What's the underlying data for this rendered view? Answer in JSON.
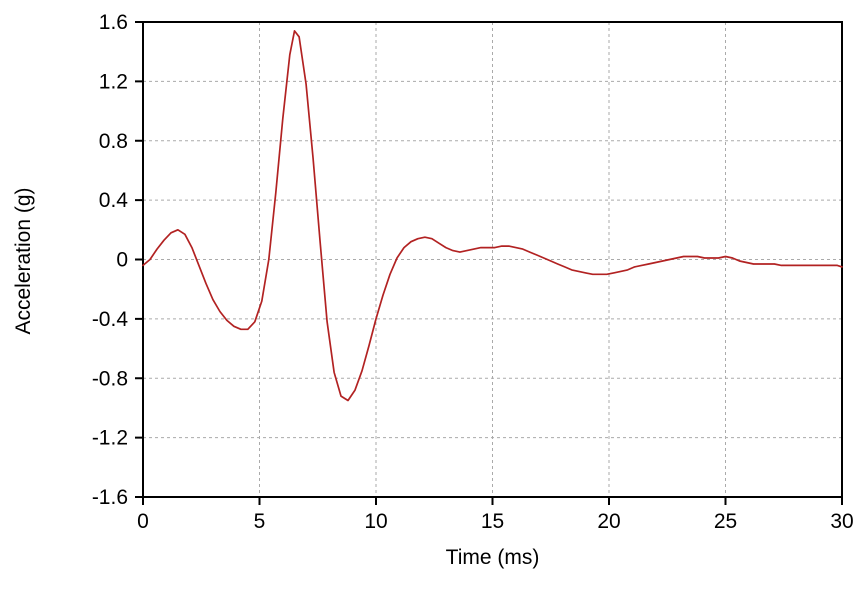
{
  "chart_data": {
    "type": "line",
    "title": "",
    "xlabel": "Time (ms)",
    "ylabel": "Acceleration (g)",
    "xlim": [
      0,
      30
    ],
    "ylim": [
      -1.6,
      1.6
    ],
    "xticks": [
      0,
      5,
      10,
      15,
      20,
      25,
      30
    ],
    "xtick_labels": [
      "0",
      "5",
      "10",
      "15",
      "20",
      "25",
      "30"
    ],
    "yticks": [
      -1.6,
      -1.2,
      -0.8,
      -0.4,
      0,
      0.4,
      0.8,
      1.2,
      1.6
    ],
    "ytick_labels": [
      "-1.6",
      "-1.2",
      "-0.8",
      "-0.4",
      "0",
      "0.4",
      "0.8",
      "1.2",
      "1.6"
    ],
    "grid": true,
    "legend": false,
    "line_color": "#b22222",
    "grid_color": "#aaaaaa",
    "border_color": "#000000",
    "series": [
      {
        "name": "acceleration",
        "x": [
          0.0,
          0.3,
          0.6,
          0.9,
          1.2,
          1.5,
          1.8,
          2.1,
          2.4,
          2.7,
          3.0,
          3.3,
          3.6,
          3.9,
          4.2,
          4.5,
          4.8,
          5.1,
          5.4,
          5.7,
          6.0,
          6.3,
          6.5,
          6.7,
          7.0,
          7.3,
          7.6,
          7.9,
          8.2,
          8.5,
          8.8,
          9.1,
          9.4,
          9.7,
          10.0,
          10.3,
          10.6,
          10.9,
          11.2,
          11.5,
          11.8,
          12.1,
          12.4,
          12.7,
          13.0,
          13.3,
          13.6,
          13.9,
          14.2,
          14.5,
          14.8,
          15.1,
          15.4,
          15.7,
          16.0,
          16.3,
          16.6,
          16.9,
          17.2,
          17.5,
          17.8,
          18.1,
          18.4,
          18.7,
          19.0,
          19.3,
          19.6,
          19.9,
          20.2,
          20.5,
          20.8,
          21.1,
          21.4,
          21.7,
          22.0,
          22.3,
          22.6,
          22.9,
          23.2,
          23.5,
          23.8,
          24.1,
          24.4,
          24.7,
          25.0,
          25.3,
          25.6,
          25.9,
          26.2,
          26.5,
          26.8,
          27.1,
          27.4,
          27.7,
          28.0,
          28.3,
          28.6,
          28.9,
          29.2,
          29.5,
          29.8,
          30.0
        ],
        "y": [
          -0.04,
          0.0,
          0.07,
          0.13,
          0.18,
          0.2,
          0.17,
          0.08,
          -0.04,
          -0.16,
          -0.27,
          -0.35,
          -0.41,
          -0.45,
          -0.47,
          -0.47,
          -0.42,
          -0.28,
          0.0,
          0.45,
          0.95,
          1.38,
          1.54,
          1.5,
          1.18,
          0.68,
          0.12,
          -0.42,
          -0.76,
          -0.92,
          -0.95,
          -0.88,
          -0.75,
          -0.58,
          -0.4,
          -0.24,
          -0.1,
          0.01,
          0.08,
          0.12,
          0.14,
          0.15,
          0.14,
          0.11,
          0.08,
          0.06,
          0.05,
          0.06,
          0.07,
          0.08,
          0.08,
          0.08,
          0.09,
          0.09,
          0.08,
          0.07,
          0.05,
          0.03,
          0.01,
          -0.01,
          -0.03,
          -0.05,
          -0.07,
          -0.08,
          -0.09,
          -0.1,
          -0.1,
          -0.1,
          -0.09,
          -0.08,
          -0.07,
          -0.05,
          -0.04,
          -0.03,
          -0.02,
          -0.01,
          0.0,
          0.01,
          0.02,
          0.02,
          0.02,
          0.01,
          0.01,
          0.01,
          0.02,
          0.01,
          -0.01,
          -0.02,
          -0.03,
          -0.03,
          -0.03,
          -0.03,
          -0.04,
          -0.04,
          -0.04,
          -0.04,
          -0.04,
          -0.04,
          -0.04,
          -0.04,
          -0.04,
          -0.05
        ]
      }
    ]
  }
}
